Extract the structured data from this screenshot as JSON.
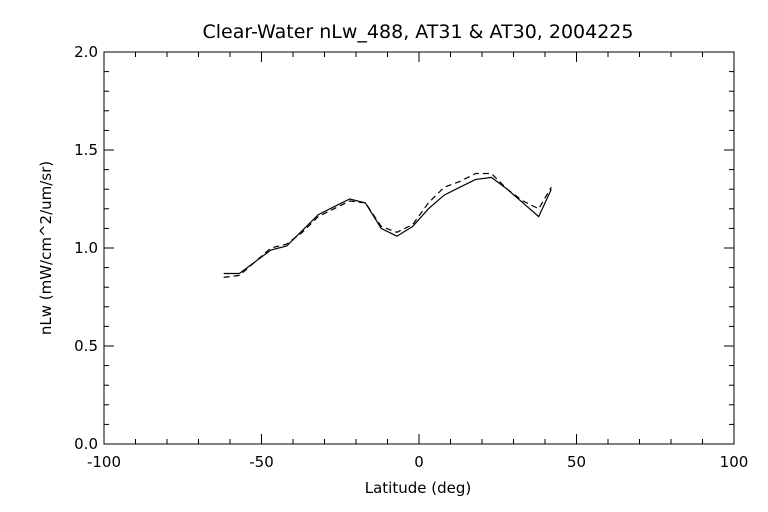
{
  "chart_data": {
    "type": "line",
    "title": "Clear-Water nLw_488, AT31 & AT30, 2004225",
    "xlabel": "Latitude (deg)",
    "ylabel": "nLw (mW/cm^2/um/sr)",
    "xlim": [
      -100,
      100
    ],
    "ylim": [
      0.0,
      2.0
    ],
    "xticks": [
      -100,
      -50,
      0,
      50,
      100
    ],
    "xtick_labels": [
      "-100",
      "-50",
      "0",
      "50",
      "100"
    ],
    "yticks": [
      0.0,
      0.5,
      1.0,
      1.5,
      2.0
    ],
    "ytick_labels": [
      "0.0",
      "0.5",
      "1.0",
      "1.5",
      "2.0"
    ],
    "grid": false,
    "series": [
      {
        "style": "solid",
        "color": "#000000",
        "x": [
          -62,
          -57,
          -52,
          -47,
          -42,
          -37,
          -32,
          -27,
          -22,
          -17,
          -12,
          -7,
          -2,
          3,
          8,
          13,
          18,
          23,
          28,
          33,
          38,
          42
        ],
        "y": [
          0.87,
          0.87,
          0.93,
          0.99,
          1.01,
          1.09,
          1.17,
          1.21,
          1.25,
          1.23,
          1.1,
          1.06,
          1.11,
          1.2,
          1.27,
          1.31,
          1.35,
          1.36,
          1.3,
          1.23,
          1.16,
          1.3
        ]
      },
      {
        "style": "dashed",
        "color": "#000000",
        "x": [
          -62,
          -57,
          -52,
          -47,
          -42,
          -37,
          -32,
          -27,
          -22,
          -17,
          -12,
          -7,
          -2,
          3,
          8,
          13,
          18,
          23,
          28,
          33,
          38,
          42
        ],
        "y": [
          0.85,
          0.86,
          0.93,
          1.0,
          1.02,
          1.08,
          1.16,
          1.2,
          1.24,
          1.23,
          1.11,
          1.08,
          1.12,
          1.23,
          1.31,
          1.34,
          1.38,
          1.38,
          1.3,
          1.24,
          1.2,
          1.31
        ]
      }
    ]
  }
}
